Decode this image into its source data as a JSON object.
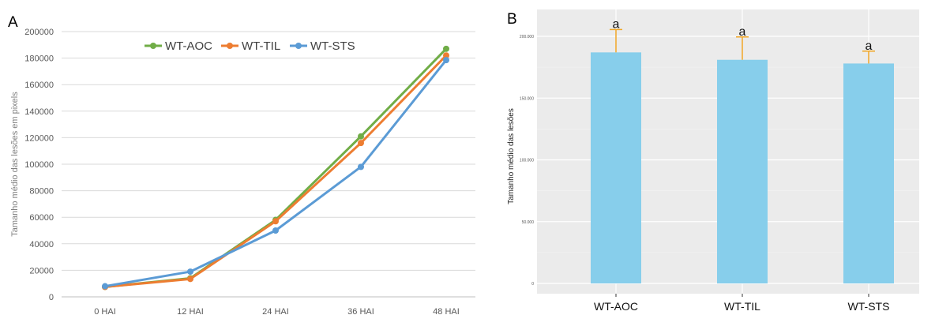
{
  "chart_data": [
    {
      "panel": "A",
      "type": "line",
      "title": "",
      "xlabel": "",
      "ylabel": "Tamanho médio das lesões em pixels",
      "x": [
        "0 HAI",
        "12 HAI",
        "24 HAI",
        "36 HAI",
        "48 HAI"
      ],
      "ylim": [
        0,
        200000
      ],
      "yticks": [
        0,
        20000,
        40000,
        60000,
        80000,
        100000,
        120000,
        140000,
        160000,
        180000,
        200000
      ],
      "grid": true,
      "legend_position": "top",
      "series": [
        {
          "name": "WT-AOC",
          "color": "#70AD47",
          "values": [
            7500,
            14000,
            58000,
            121000,
            187000
          ]
        },
        {
          "name": "WT-TIL",
          "color": "#ED7D31",
          "values": [
            7500,
            13500,
            57000,
            116000,
            182000
          ]
        },
        {
          "name": "WT-STS",
          "color": "#5B9BD5",
          "values": [
            8000,
            19000,
            50000,
            98000,
            178500
          ]
        }
      ]
    },
    {
      "panel": "B",
      "type": "bar",
      "title": "",
      "xlabel": "",
      "ylabel": "Tamanho médio das lesões",
      "categories": [
        "WT-AOC",
        "WT-TIL",
        "WT-STS"
      ],
      "values": [
        187000,
        181000,
        178000
      ],
      "error": [
        18500,
        18500,
        10000
      ],
      "significance": [
        "a",
        "a",
        "a"
      ],
      "ylim": [
        0,
        210000
      ],
      "yticks": [
        0,
        50000,
        100000,
        150000,
        200000
      ],
      "ytick_labels": [
        "0",
        "50.000",
        "100.000",
        "150.000",
        "200.000"
      ],
      "grid": true,
      "bar_color": "#87CEEB",
      "error_color": "#F0A626",
      "background": "#EBEBEB"
    }
  ]
}
